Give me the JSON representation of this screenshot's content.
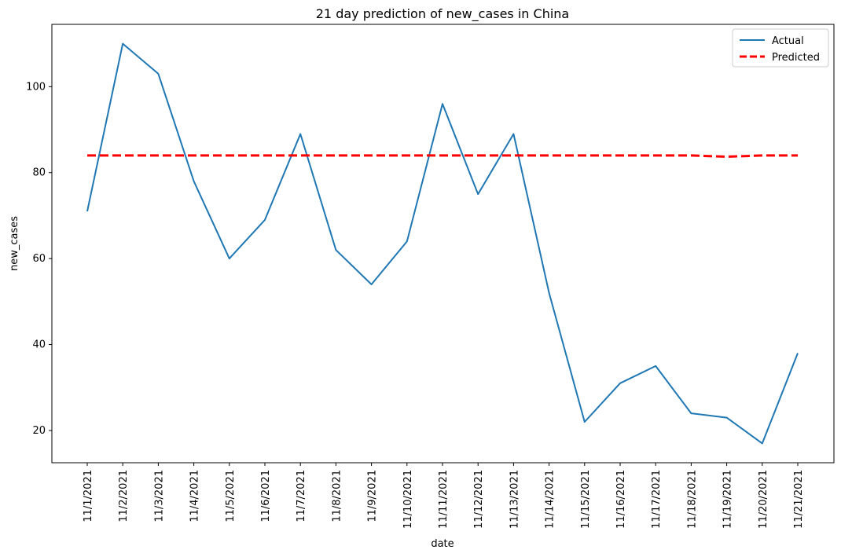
{
  "chart_data": {
    "type": "line",
    "title": "21 day prediction of new_cases in China",
    "xlabel": "date",
    "ylabel": "new_cases",
    "categories": [
      "11/1/2021",
      "11/2/2021",
      "11/3/2021",
      "11/4/2021",
      "11/5/2021",
      "11/6/2021",
      "11/7/2021",
      "11/8/2021",
      "11/9/2021",
      "11/10/2021",
      "11/11/2021",
      "11/12/2021",
      "11/13/2021",
      "11/14/2021",
      "11/15/2021",
      "11/16/2021",
      "11/17/2021",
      "11/18/2021",
      "11/19/2021",
      "11/20/2021",
      "11/21/2021"
    ],
    "y_ticks": [
      20,
      40,
      60,
      80,
      100
    ],
    "ylim": [
      12.5,
      114.5
    ],
    "grid": false,
    "legend_position": "top-right",
    "series": [
      {
        "name": "Actual",
        "color": "#1f77b4",
        "line_style": "solid",
        "values": [
          71,
          110,
          103,
          78,
          60,
          69,
          89,
          62,
          54,
          64,
          96,
          75,
          89,
          52,
          22,
          31,
          35,
          24,
          23,
          17,
          38
        ]
      },
      {
        "name": "Predicted",
        "color": "#ff0000",
        "line_style": "dashed",
        "values": [
          84,
          84,
          84,
          84,
          84,
          84,
          84,
          84,
          84,
          84,
          84,
          84,
          84,
          84,
          84,
          84,
          84,
          84,
          83.7,
          84,
          84
        ]
      }
    ]
  }
}
